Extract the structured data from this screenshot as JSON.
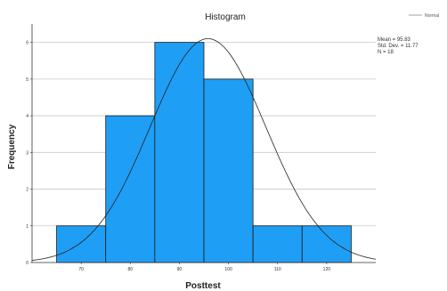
{
  "chart_data": {
    "type": "bar",
    "title": "Histogram",
    "xlabel": "Posttest",
    "ylabel": "Frequency",
    "categories": [
      "70",
      "80",
      "90",
      "100",
      "110",
      "120"
    ],
    "bins": [
      {
        "start": 65,
        "end": 75,
        "count": 1
      },
      {
        "start": 75,
        "end": 85,
        "count": 4
      },
      {
        "start": 85,
        "end": 95,
        "count": 6
      },
      {
        "start": 95,
        "end": 105,
        "count": 5
      },
      {
        "start": 105,
        "end": 115,
        "count": 1
      },
      {
        "start": 115,
        "end": 125,
        "count": 1
      }
    ],
    "xlim": [
      60,
      130
    ],
    "ylim": [
      0,
      6.5
    ],
    "yticks": [
      "0",
      "1",
      "2",
      "3",
      "4",
      "5",
      "6"
    ],
    "xticks": [
      70,
      80,
      90,
      100,
      110,
      120
    ],
    "grid": true,
    "normal_curve": {
      "mean": 95.83,
      "std": 11.77,
      "n": 18
    },
    "stats_text": [
      "Mean = 95.83",
      "Std. Dev. = 11.77",
      "N = 18"
    ],
    "legend": {
      "label": "Normal",
      "placement": "top-right"
    },
    "bar_color": "#1f9ef5",
    "bar_edge": "#1a1a1a"
  }
}
